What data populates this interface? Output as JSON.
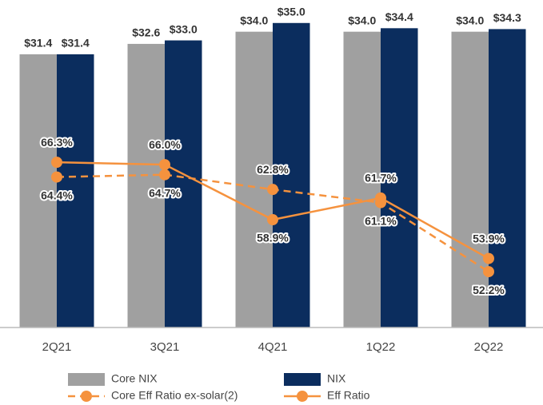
{
  "chart_data": {
    "type": "bar",
    "categories": [
      "2Q21",
      "3Q21",
      "4Q21",
      "1Q22",
      "2Q22"
    ],
    "ylim": [
      0,
      37
    ],
    "y2lim": [
      45,
      86.5
    ],
    "series": [
      {
        "name": "Core NIX",
        "type": "bar",
        "color": "#a0a0a0",
        "values": [
          31.4,
          32.6,
          34.0,
          34.0,
          34.0
        ],
        "value_labels": [
          "$31.4",
          "$32.6",
          "$34.0",
          "$34.0",
          "$34.0"
        ]
      },
      {
        "name": "NIX",
        "type": "bar",
        "color": "#0b2d5e",
        "values": [
          31.4,
          33.0,
          35.0,
          34.4,
          34.3
        ],
        "value_labels": [
          "$31.4",
          "$33.0",
          "$35.0",
          "$34.4",
          "$34.3"
        ]
      },
      {
        "name": "Core Eff Ratio ex-solar(2)",
        "type": "line",
        "dashed": true,
        "axis": "y2",
        "color": "#f5923e",
        "values": [
          64.4,
          64.7,
          62.8,
          61.1,
          52.2
        ],
        "value_labels": [
          "64.4%",
          "64.7%",
          "62.8%",
          "61.1%",
          "52.2%"
        ]
      },
      {
        "name": "Eff Ratio",
        "type": "line",
        "dashed": false,
        "axis": "y2",
        "color": "#f5923e",
        "values": [
          66.3,
          66.0,
          58.9,
          61.7,
          53.9
        ],
        "value_labels": [
          "66.3%",
          "66.0%",
          "58.9%",
          "61.7%",
          "53.9%"
        ]
      }
    ]
  }
}
